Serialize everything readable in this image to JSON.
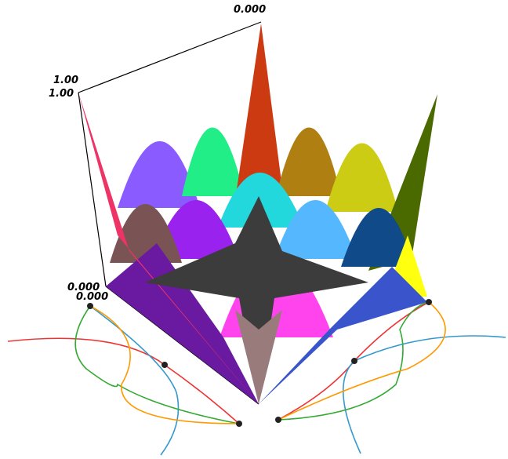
{
  "axis_labels": {
    "top_back": "0.000",
    "left_top_1": "1.00",
    "left_top_2": "1.00",
    "left_bottom_1": "0.000",
    "left_bottom_2": "0.000"
  }
}
